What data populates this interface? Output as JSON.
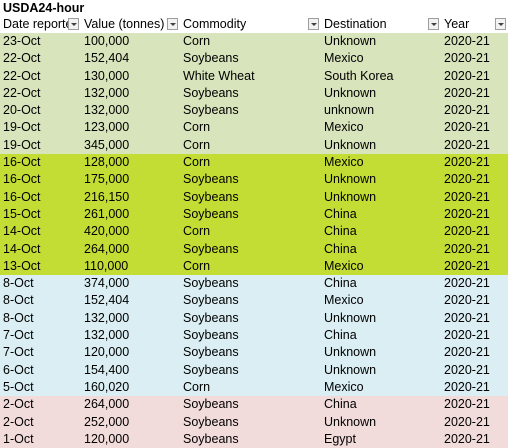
{
  "title": "USDA24-hour",
  "headers": [
    "Date reported",
    "Value (tonnes)",
    "Commodity",
    "Destination",
    "Year"
  ],
  "groups": [
    {
      "color": "#d8e4bc",
      "rows": [
        [
          "23-Oct",
          "100,000",
          "Corn",
          "Unknown",
          "2020-21"
        ],
        [
          "22-Oct",
          "152,404",
          "Soybeans",
          "Mexico",
          "2020-21"
        ],
        [
          "22-Oct",
          "130,000",
          "White Wheat",
          "South Korea",
          "2020-21"
        ],
        [
          "22-Oct",
          "132,000",
          "Soybeans",
          "Unknown",
          "2020-21"
        ],
        [
          "20-Oct",
          "132,000",
          "Soybeans",
          "unknown",
          "2020-21"
        ],
        [
          "19-Oct",
          "123,000",
          "Corn",
          "Mexico",
          "2020-21"
        ],
        [
          "19-Oct",
          "345,000",
          "Corn",
          "Unknown",
          "2020-21"
        ]
      ]
    },
    {
      "color": "#c4dd35",
      "rows": [
        [
          "16-Oct",
          "128,000",
          "Corn",
          "Mexico",
          "2020-21"
        ],
        [
          "16-Oct",
          "175,000",
          "Soybeans",
          "Unknown",
          "2020-21"
        ],
        [
          "16-Oct",
          "216,150",
          "Soybeans",
          "Unknown",
          "2020-21"
        ],
        [
          "15-Oct",
          "261,000",
          "Soybeans",
          "China",
          "2020-21"
        ],
        [
          "14-Oct",
          "420,000",
          "Corn",
          "China",
          "2020-21"
        ],
        [
          "14-Oct",
          "264,000",
          "Soybeans",
          "China",
          "2020-21"
        ],
        [
          "13-Oct",
          "110,000",
          "Corn",
          "Mexico",
          "2020-21"
        ]
      ]
    },
    {
      "color": "#daeef3",
      "rows": [
        [
          "8-Oct",
          "374,000",
          "Soybeans",
          "China",
          "2020-21"
        ],
        [
          "8-Oct",
          "152,404",
          "Soybeans",
          "Mexico",
          "2020-21"
        ],
        [
          "8-Oct",
          "132,000",
          "Soybeans",
          "Unknown",
          "2020-21"
        ],
        [
          "7-Oct",
          "132,000",
          "Soybeans",
          "China",
          "2020-21"
        ],
        [
          "7-Oct",
          "120,000",
          "Soybeans",
          "Unknown",
          "2020-21"
        ],
        [
          "6-Oct",
          "154,400",
          "Soybeans",
          "Unknown",
          "2020-21"
        ],
        [
          "5-Oct",
          "160,020",
          "Corn",
          "Mexico",
          "2020-21"
        ]
      ]
    },
    {
      "color": "#f2dcdb",
      "rows": [
        [
          "2-Oct",
          "264,000",
          "Soybeans",
          "China",
          "2020-21"
        ],
        [
          "2-Oct",
          "252,000",
          "Soybeans",
          "Unknown",
          "2020-21"
        ],
        [
          "1-Oct",
          "120,000",
          "Soybeans",
          "Egypt",
          "2020-21"
        ]
      ]
    }
  ]
}
